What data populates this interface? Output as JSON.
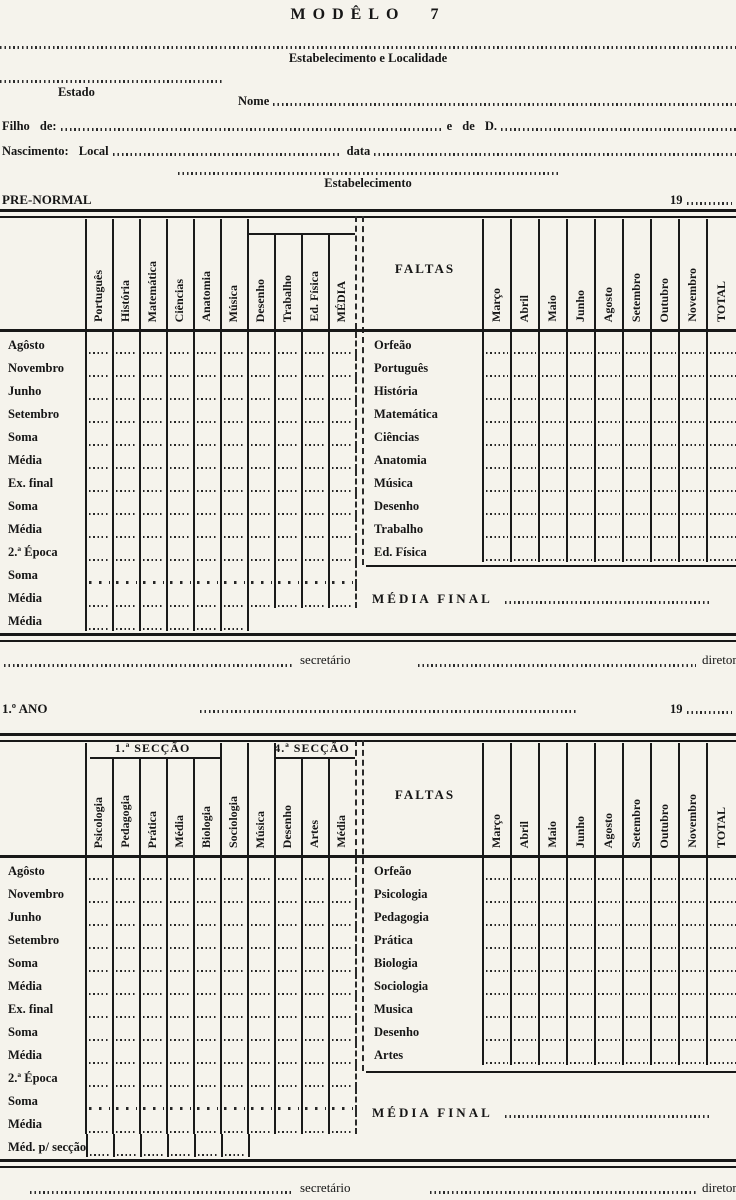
{
  "header": {
    "title": "MODÊLO 7",
    "establishment_locality_label": "Estabelecimento e Localidade",
    "estado_label": "Estado",
    "nome_label": "Nome",
    "filho_de_label": "Filho de:",
    "e_de_d_label": "e de D.",
    "nascimento_local_label": "Nascimento: Local",
    "data_label": "data",
    "estabelecimento_label": "Estabelecimento"
  },
  "sections": [
    {
      "section_label": "PRE-NORMAL",
      "year_prefix": "19",
      "grade_columns": [
        "Português",
        "História",
        "Matemática",
        "Ciências",
        "Anatomia",
        "Música",
        "Desenho",
        "Trabalho",
        "Ed. Física",
        "MÉDIA"
      ],
      "row_labels": [
        "Agôsto",
        "Novembro",
        "Junho",
        "Setembro",
        "Soma",
        "Média",
        "Ex. final",
        "Soma",
        "Média",
        "2.ª Época",
        "Soma",
        "Média",
        "Média"
      ],
      "faltas_label": "FALTAS",
      "faltas_rows": [
        "Orfeão",
        "Português",
        "História",
        "Matemática",
        "Ciências",
        "Anatomia",
        "Música",
        "Desenho",
        "Trabalho",
        "Ed. Física"
      ],
      "month_columns": [
        "Março",
        "Abril",
        "Maio",
        "Junho",
        "Agosto",
        "Setembro",
        "Outubro",
        "Novembro",
        "TOTAL"
      ],
      "media_final_label": "MÉDIA FINAL",
      "secretario_label": "secretário",
      "diretor_label": "diretor"
    },
    {
      "section_label": "1.º ANO",
      "year_prefix": "19",
      "group_headers": [
        "1.ª SECÇÃO",
        "4.ª SECÇÃO"
      ],
      "grade_columns": [
        "Psicologia",
        "Pedagogia",
        "Prática",
        "Média",
        "Biologia",
        "Sociologia",
        "Música",
        "Desenho",
        "Artes",
        "Média"
      ],
      "row_labels": [
        "Agôsto",
        "Novembro",
        "Junho",
        "Setembro",
        "Soma",
        "Média",
        "Ex. final",
        "Soma",
        "Média",
        "2.ª Época",
        "Soma",
        "Média",
        "Méd. p/ secção"
      ],
      "faltas_label": "FALTAS",
      "faltas_rows": [
        "Orfeão",
        "Psicologia",
        "Pedagogia",
        "Prática",
        "Biologia",
        "Sociologia",
        "Musica",
        "Desenho",
        "Artes"
      ],
      "month_columns": [
        "Março",
        "Abril",
        "Maio",
        "Junho",
        "Agosto",
        "Setembro",
        "Outubro",
        "Novembro",
        "TOTAL"
      ],
      "media_final_label": "MÉDIA FINAL",
      "secretario_label": "secretário",
      "diretor_label": "diretor"
    }
  ],
  "colors": {
    "paper": "#f5f3ec",
    "ink": "#1a1a1a"
  }
}
